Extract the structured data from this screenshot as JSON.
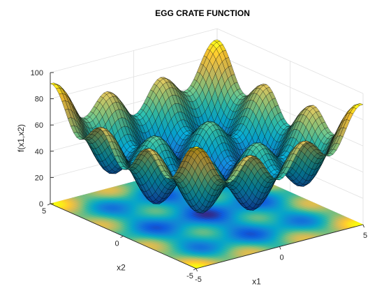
{
  "chart_data": {
    "type": "surface",
    "title": "EGG CRATE FUNCTION",
    "xlabel": "x1",
    "ylabel": "x2",
    "zlabel": "f(x1,x2)",
    "function": "x1^2 + x2^2 + 25*(sin(x1)^2 + sin(x2)^2)",
    "x_range": [
      -5,
      5
    ],
    "y_range": [
      -5,
      5
    ],
    "z_range": [
      0,
      100
    ],
    "x_ticks": [
      "-5",
      "0",
      "5"
    ],
    "y_ticks": [
      "-5",
      "0",
      "5"
    ],
    "z_ticks": [
      "0",
      "20",
      "40",
      "60",
      "80",
      "100"
    ],
    "grid": true,
    "colormap": "parula",
    "contour_plane": "z=0",
    "colors": {
      "parula": [
        "#352a87",
        "#0f5cdd",
        "#1481d6",
        "#06a4ca",
        "#2eb7a4",
        "#87bf77",
        "#d1bb59",
        "#fec832",
        "#f9fb0e"
      ],
      "mesh_edge": "#000000",
      "axis": "#262626",
      "grid": "#e0e0e0"
    }
  }
}
